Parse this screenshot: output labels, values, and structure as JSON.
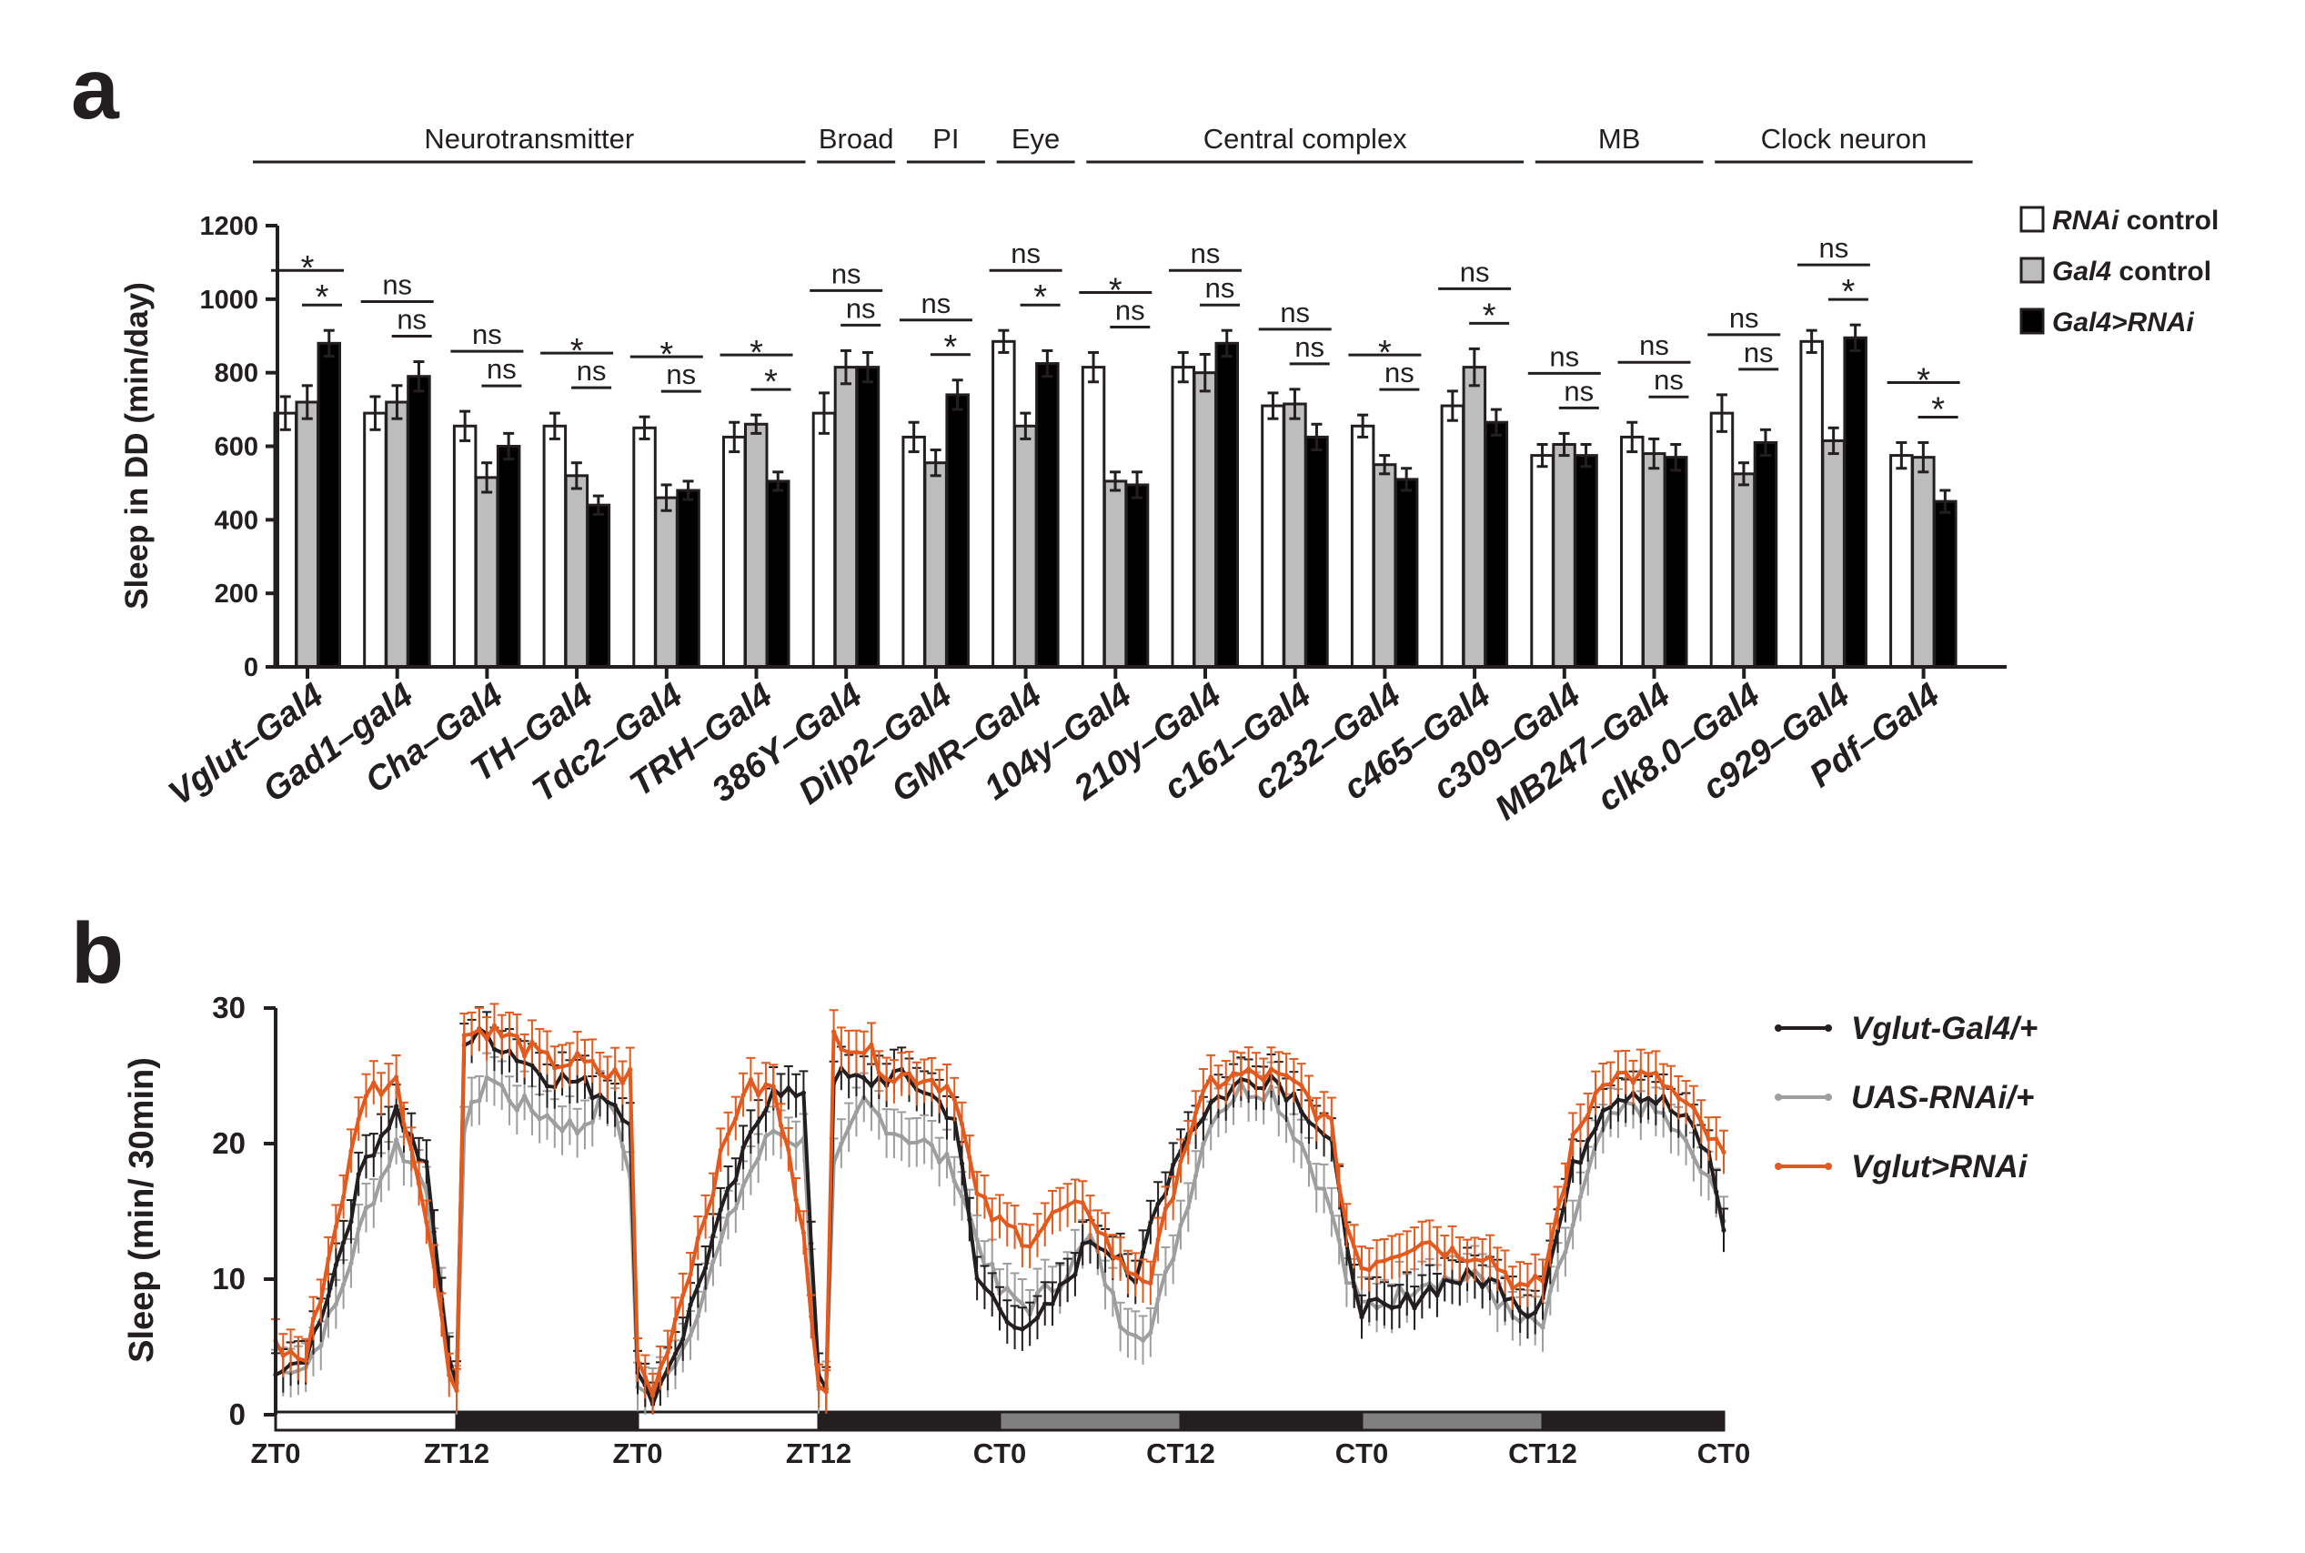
{
  "panels": {
    "a": "a",
    "b": "b"
  },
  "chart_data": [
    {
      "type": "bar",
      "ylabel": "Sleep in DD (min/day)",
      "ylim": [
        0,
        1200
      ],
      "yticks": [
        "0",
        "200",
        "400",
        "600",
        "800",
        "1000",
        "1200"
      ],
      "groups": [
        {
          "label": "Neurotransmitter",
          "from": 0,
          "to": 5
        },
        {
          "label": "Broad",
          "from": 6,
          "to": 6
        },
        {
          "label": "PI",
          "from": 7,
          "to": 7
        },
        {
          "label": "Eye",
          "from": 8,
          "to": 8
        },
        {
          "label": "Central complex",
          "from": 9,
          "to": 13
        },
        {
          "label": "MB",
          "from": 14,
          "to": 15
        },
        {
          "label": "Clock neuron",
          "from": 16,
          "to": 18
        }
      ],
      "categories": [
        "Vglut–Gal4",
        "Gad1–gal4",
        "Cha–Gal4",
        "TH–Gal4",
        "Tdc2–Gal4",
        "TRH–Gal4",
        "386Y–Gal4",
        "Dilp2–Gal4",
        "GMR–Gal4",
        "104y–Gal4",
        "210y–Gal4",
        "c161–Gal4",
        "c232–Gal4",
        "c465–Gal4",
        "c309–Gal4",
        "MB247–Gal4",
        "clk8.0–Gal4",
        "c929–Gal4",
        "Pdf–Gal4"
      ],
      "legend": [
        {
          "italic": "RNAi",
          "rest": " control",
          "color": "#ffffff"
        },
        {
          "italic": "Gal4",
          "rest": " control",
          "color": "#bdbdbd"
        },
        {
          "italic": "Gal4>RNAi",
          "rest": "",
          "color": "#000000"
        }
      ],
      "series": [
        {
          "values": [
            690,
            690,
            655,
            655,
            650,
            625,
            690,
            625,
            885,
            815,
            815,
            710,
            655,
            710,
            575,
            625,
            690,
            885,
            575
          ],
          "errors": [
            45,
            45,
            40,
            35,
            30,
            40,
            55,
            40,
            30,
            40,
            40,
            35,
            30,
            40,
            30,
            40,
            50,
            30,
            35
          ]
        },
        {
          "values": [
            720,
            720,
            515,
            520,
            460,
            660,
            815,
            555,
            655,
            505,
            800,
            715,
            550,
            815,
            605,
            580,
            525,
            615,
            570
          ],
          "errors": [
            45,
            45,
            40,
            35,
            35,
            25,
            45,
            35,
            35,
            25,
            50,
            40,
            25,
            50,
            30,
            40,
            30,
            35,
            40
          ]
        },
        {
          "values": [
            880,
            790,
            600,
            440,
            480,
            505,
            815,
            740,
            825,
            495,
            880,
            625,
            510,
            665,
            575,
            570,
            610,
            895,
            450
          ],
          "errors": [
            35,
            40,
            35,
            25,
            25,
            25,
            40,
            40,
            35,
            35,
            35,
            35,
            30,
            35,
            30,
            35,
            35,
            35,
            30
          ]
        }
      ],
      "significance": [
        {
          "a": "*",
          "b": "*"
        },
        {
          "a": "ns",
          "b": "ns"
        },
        {
          "a": "ns",
          "b": "ns"
        },
        {
          "a": "*",
          "b": "ns"
        },
        {
          "a": "*",
          "b": "ns"
        },
        {
          "a": "*",
          "b": "*"
        },
        {
          "a": "ns",
          "b": "ns"
        },
        {
          "a": "ns",
          "b": "*"
        },
        {
          "a": "ns",
          "b": "*"
        },
        {
          "a": "*",
          "b": "ns"
        },
        {
          "a": "ns",
          "b": "ns"
        },
        {
          "a": "ns",
          "b": "ns"
        },
        {
          "a": "*",
          "b": "ns"
        },
        {
          "a": "ns",
          "b": "*"
        },
        {
          "a": "ns",
          "b": "ns"
        },
        {
          "a": "ns",
          "b": "ns"
        },
        {
          "a": "ns",
          "b": "ns"
        },
        {
          "a": "ns",
          "b": "*"
        },
        {
          "a": "*",
          "b": "*"
        }
      ]
    },
    {
      "type": "line",
      "ylabel": "Sleep (min/ 30min)",
      "ylim": [
        0,
        30
      ],
      "yticks": [
        "0",
        "10",
        "20",
        "30"
      ],
      "x_unit": "30-min bins",
      "xlim": [
        0,
        192
      ],
      "xticks": [
        {
          "at": 0,
          "label": "ZT0"
        },
        {
          "at": 24,
          "label": "ZT12"
        },
        {
          "at": 48,
          "label": "ZT0"
        },
        {
          "at": 72,
          "label": "ZT12"
        },
        {
          "at": 96,
          "label": "CT0"
        },
        {
          "at": 120,
          "label": "CT12"
        },
        {
          "at": 144,
          "label": "CT0"
        },
        {
          "at": 168,
          "label": "CT12"
        },
        {
          "at": 192,
          "label": "CT0"
        }
      ],
      "condition_bar": [
        {
          "from": 0,
          "to": 24,
          "color": "#ffffff"
        },
        {
          "from": 24,
          "to": 48,
          "color": "#231f20"
        },
        {
          "from": 48,
          "to": 72,
          "color": "#ffffff"
        },
        {
          "from": 72,
          "to": 96,
          "color": "#231f20"
        },
        {
          "from": 96,
          "to": 120,
          "color": "#808080"
        },
        {
          "from": 120,
          "to": 144,
          "color": "#231f20"
        },
        {
          "from": 144,
          "to": 168,
          "color": "#808080"
        },
        {
          "from": 168,
          "to": 192,
          "color": "#231f20"
        }
      ],
      "series": [
        {
          "name": "Vglut-Gal4/+",
          "color": "#231f20",
          "error": 1.6,
          "keypoints": [
            [
              0,
              3
            ],
            [
              4,
              4
            ],
            [
              8,
              11
            ],
            [
              12,
              19
            ],
            [
              16,
              22.5
            ],
            [
              20,
              18
            ],
            [
              23,
              4
            ],
            [
              24,
              2.5
            ],
            [
              25,
              27.5
            ],
            [
              28,
              28
            ],
            [
              32,
              26.5
            ],
            [
              36,
              25
            ],
            [
              40,
              24.5
            ],
            [
              44,
              23.5
            ],
            [
              47,
              22
            ],
            [
              48,
              3
            ],
            [
              50,
              1
            ],
            [
              54,
              6
            ],
            [
              58,
              13
            ],
            [
              62,
              19
            ],
            [
              66,
              24.5
            ],
            [
              70,
              23
            ],
            [
              72,
              3
            ],
            [
              73,
              2
            ],
            [
              74,
              25
            ],
            [
              78,
              24.5
            ],
            [
              82,
              25
            ],
            [
              86,
              24
            ],
            [
              90,
              22
            ],
            [
              93,
              10
            ],
            [
              96,
              8
            ],
            [
              100,
              6
            ],
            [
              104,
              9
            ],
            [
              108,
              13
            ],
            [
              112,
              12
            ],
            [
              114,
              9
            ],
            [
              116,
              14
            ],
            [
              120,
              20
            ],
            [
              124,
              23
            ],
            [
              128,
              24.5
            ],
            [
              132,
              25
            ],
            [
              136,
              23
            ],
            [
              140,
              20
            ],
            [
              142,
              12
            ],
            [
              144,
              8
            ],
            [
              148,
              7.5
            ],
            [
              152,
              9
            ],
            [
              156,
              10
            ],
            [
              160,
              10
            ],
            [
              164,
              9
            ],
            [
              166,
              7.5
            ],
            [
              168,
              9
            ],
            [
              172,
              18
            ],
            [
              176,
              23
            ],
            [
              180,
              24
            ],
            [
              184,
              23
            ],
            [
              188,
              21
            ],
            [
              190,
              19
            ],
            [
              192,
              14
            ]
          ]
        },
        {
          "name": "UAS-RNAi/+",
          "color": "#9e9e9e",
          "error": 1.8,
          "keypoints": [
            [
              0,
              3
            ],
            [
              4,
              3.5
            ],
            [
              8,
              8
            ],
            [
              12,
              15
            ],
            [
              16,
              20
            ],
            [
              20,
              17
            ],
            [
              23,
              4
            ],
            [
              24,
              2
            ],
            [
              25,
              21
            ],
            [
              28,
              25
            ],
            [
              32,
              23
            ],
            [
              36,
              22
            ],
            [
              40,
              21
            ],
            [
              44,
              23.5
            ],
            [
              47,
              18
            ],
            [
              48,
              2
            ],
            [
              50,
              1.5
            ],
            [
              54,
              5
            ],
            [
              58,
              11
            ],
            [
              62,
              17
            ],
            [
              66,
              21
            ],
            [
              70,
              20
            ],
            [
              72,
              2
            ],
            [
              73,
              2
            ],
            [
              74,
              18
            ],
            [
              78,
              23
            ],
            [
              82,
              21
            ],
            [
              86,
              20
            ],
            [
              90,
              18
            ],
            [
              93,
              13
            ],
            [
              96,
              9
            ],
            [
              100,
              8
            ],
            [
              104,
              10
            ],
            [
              108,
              13
            ],
            [
              112,
              7
            ],
            [
              116,
              6
            ],
            [
              120,
              14
            ],
            [
              124,
              22
            ],
            [
              128,
              24
            ],
            [
              132,
              24
            ],
            [
              136,
              20
            ],
            [
              140,
              15
            ],
            [
              142,
              10
            ],
            [
              144,
              8
            ],
            [
              148,
              8.5
            ],
            [
              152,
              10
            ],
            [
              156,
              10
            ],
            [
              160,
              10
            ],
            [
              164,
              7
            ],
            [
              168,
              6.5
            ],
            [
              172,
              14
            ],
            [
              176,
              21
            ],
            [
              180,
              23
            ],
            [
              184,
              22
            ],
            [
              188,
              19
            ],
            [
              192,
              15
            ]
          ]
        },
        {
          "name": "Vglut>RNAi",
          "color": "#e35a1e",
          "error": 1.6,
          "keypoints": [
            [
              0,
              5
            ],
            [
              4,
              4
            ],
            [
              8,
              14
            ],
            [
              12,
              24
            ],
            [
              16,
              24.5
            ],
            [
              20,
              15
            ],
            [
              23,
              3
            ],
            [
              24,
              2
            ],
            [
              25,
              28
            ],
            [
              28,
              28.5
            ],
            [
              32,
              27.5
            ],
            [
              36,
              26
            ],
            [
              40,
              26
            ],
            [
              44,
              25
            ],
            [
              47,
              25
            ],
            [
              48,
              4
            ],
            [
              50,
              1.5
            ],
            [
              54,
              9
            ],
            [
              58,
              17
            ],
            [
              62,
              24
            ],
            [
              66,
              24
            ],
            [
              70,
              14
            ],
            [
              72,
              2
            ],
            [
              73,
              1.5
            ],
            [
              74,
              28
            ],
            [
              78,
              27
            ],
            [
              82,
              25
            ],
            [
              86,
              25
            ],
            [
              90,
              24
            ],
            [
              93,
              16
            ],
            [
              96,
              14
            ],
            [
              100,
              13
            ],
            [
              104,
              15
            ],
            [
              108,
              15
            ],
            [
              112,
              11
            ],
            [
              116,
              10
            ],
            [
              120,
              19
            ],
            [
              124,
              24.5
            ],
            [
              128,
              25
            ],
            [
              132,
              25
            ],
            [
              136,
              24
            ],
            [
              140,
              21
            ],
            [
              142,
              14
            ],
            [
              144,
              11
            ],
            [
              148,
              12
            ],
            [
              152,
              13
            ],
            [
              156,
              12
            ],
            [
              160,
              12
            ],
            [
              164,
              10
            ],
            [
              166,
              9
            ],
            [
              168,
              10
            ],
            [
              172,
              20
            ],
            [
              176,
              25
            ],
            [
              180,
              25
            ],
            [
              184,
              24.5
            ],
            [
              188,
              22
            ],
            [
              192,
              19
            ]
          ]
        }
      ]
    }
  ]
}
